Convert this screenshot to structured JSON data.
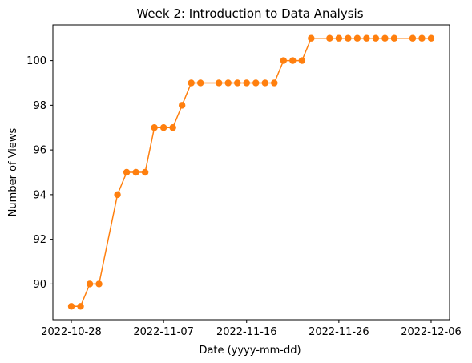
{
  "chart_data": {
    "type": "line",
    "title": "Week 2: Introduction to Data Analysis",
    "xlabel": "Date (yyyy-mm-dd)",
    "ylabel": "Number of Views",
    "xlim": [
      "2022-10-26",
      "2022-12-08"
    ],
    "ylim": [
      88.4,
      101.6
    ],
    "x_ticks": [
      "2022-10-28",
      "2022-11-07",
      "2022-11-16",
      "2022-11-26",
      "2022-12-06"
    ],
    "y_ticks": [
      90,
      92,
      94,
      96,
      98,
      100
    ],
    "grid": false,
    "marker": "circle",
    "series": [
      {
        "color": "#ff7f0e",
        "x": [
          "2022-10-28",
          "2022-10-29",
          "2022-10-30",
          "2022-10-31",
          "2022-11-02",
          "2022-11-03",
          "2022-11-04",
          "2022-11-05",
          "2022-11-06",
          "2022-11-07",
          "2022-11-08",
          "2022-11-09",
          "2022-11-10",
          "2022-11-11",
          "2022-11-13",
          "2022-11-14",
          "2022-11-15",
          "2022-11-16",
          "2022-11-17",
          "2022-11-18",
          "2022-11-19",
          "2022-11-20",
          "2022-11-21",
          "2022-11-22",
          "2022-11-23",
          "2022-11-25",
          "2022-11-26",
          "2022-11-27",
          "2022-11-28",
          "2022-11-29",
          "2022-11-30",
          "2022-12-01",
          "2022-12-02",
          "2022-12-04",
          "2022-12-05",
          "2022-12-06"
        ],
        "values": [
          89,
          89,
          90,
          90,
          94,
          95,
          95,
          95,
          97,
          97,
          97,
          98,
          99,
          99,
          99,
          99,
          99,
          99,
          99,
          99,
          99,
          100,
          100,
          100,
          101,
          101,
          101,
          101,
          101,
          101,
          101,
          101,
          101,
          101,
          101,
          101
        ]
      }
    ]
  }
}
